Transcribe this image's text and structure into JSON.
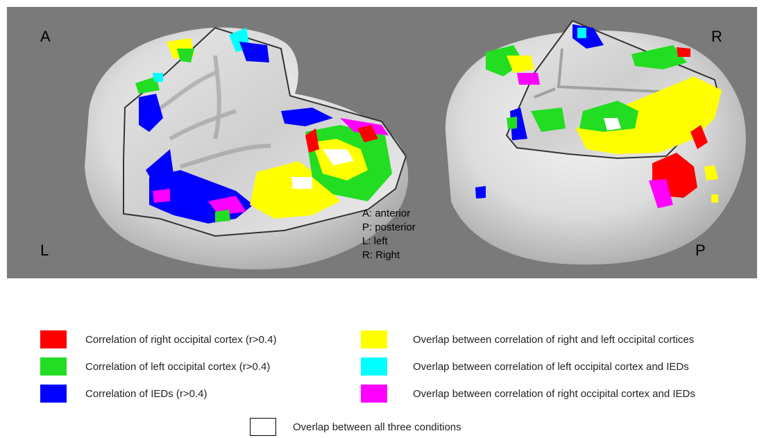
{
  "figure": {
    "left_brain": {
      "corner_top": "A",
      "corner_bottom": "L"
    },
    "right_brain": {
      "corner_top": "R",
      "corner_bottom": "P"
    },
    "orientation_key": [
      "A: anterior",
      "P: posterior",
      "L: left",
      "R: Right"
    ]
  },
  "legend": {
    "left_column": [
      {
        "color": "#ff0000",
        "label": "Correlation of right occipital cortex (r>0.4)"
      },
      {
        "color": "#22dd22",
        "label": "Correlation of left occipital cortex (r>0.4)"
      },
      {
        "color": "#0000ff",
        "label": "Correlation of IEDs (r>0.4)"
      }
    ],
    "right_column": [
      {
        "color": "#ffff00",
        "label": "Overlap between correlation of right and left occipital cortices"
      },
      {
        "color": "#00ffff",
        "label": "Overlap between correlation of left occipital cortex and IEDs"
      },
      {
        "color": "#ff00ff",
        "label": "Overlap between correlation of right occipital cortex and IEDs"
      }
    ],
    "all_three": {
      "color": "#ffffff",
      "label": "Overlap between all three conditions"
    }
  }
}
